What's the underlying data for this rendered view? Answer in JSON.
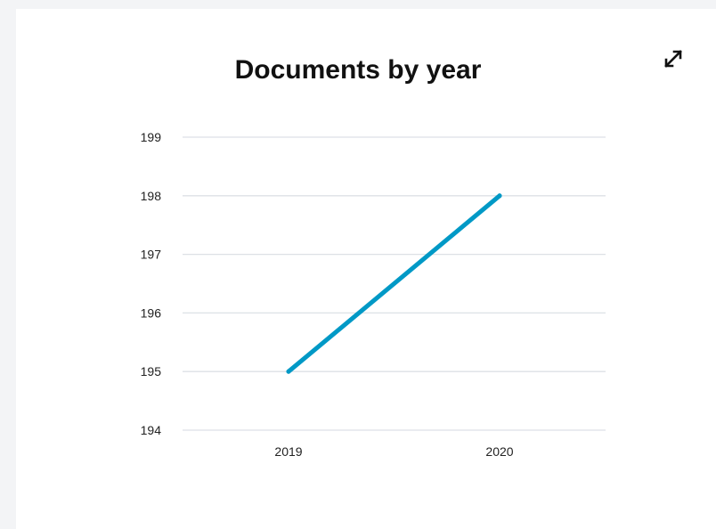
{
  "window": {
    "expand_icon": "expand-arrows-icon"
  },
  "chart_data": {
    "type": "line",
    "title": "Documents by year",
    "xlabel": "",
    "ylabel": "",
    "categories": [
      "2019",
      "2020"
    ],
    "series": [
      {
        "values": [
          195,
          198
        ],
        "color": "#0099c6"
      }
    ],
    "ylim": [
      194,
      199
    ],
    "yticks": [
      194,
      195,
      196,
      197,
      198,
      199
    ],
    "grid": true,
    "gridColor": "#dde1e6",
    "legend": "none"
  }
}
